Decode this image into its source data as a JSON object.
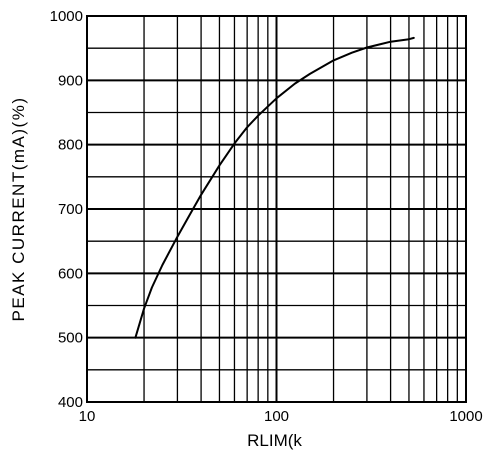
{
  "chart_data": {
    "type": "line",
    "title": "",
    "xlabel": "RLIM(k",
    "ylabel": "PEAK CURRENT(mA)(%)",
    "x_scale": "log",
    "xlim": [
      10,
      1000
    ],
    "ylim": [
      400,
      1000
    ],
    "x_tick_labels": [
      "10",
      "100",
      "1000"
    ],
    "y_tick_labels": [
      "400",
      "500",
      "600",
      "700",
      "800",
      "900",
      "1000"
    ],
    "grid": true,
    "legend": "none",
    "colors": {
      "line": "#000000",
      "grid": "#000000",
      "background": "#ffffff"
    },
    "series": [
      {
        "x": [
          18,
          20,
          22,
          25,
          30,
          35,
          40,
          50,
          60,
          70,
          80,
          100,
          125,
          150,
          200,
          250,
          300,
          400,
          500,
          530
        ],
        "y": [
          500,
          545,
          578,
          613,
          657,
          692,
          722,
          768,
          802,
          827,
          845,
          872,
          895,
          910,
          931,
          943,
          951,
          960,
          964,
          966
        ]
      }
    ]
  }
}
